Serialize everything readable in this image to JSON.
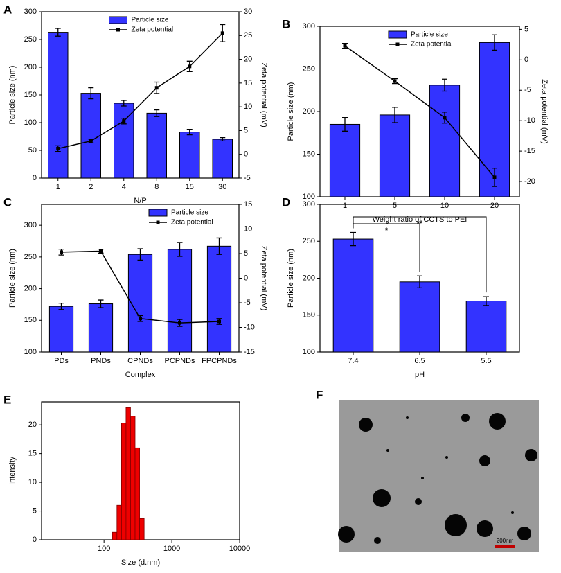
{
  "chart_data": [
    {
      "type": "bar",
      "panel_label": "A",
      "categories": [
        "1",
        "2",
        "4",
        "8",
        "15",
        "30"
      ],
      "xlabel": "N/P",
      "ylabel": "Particle size (nm)",
      "y2label": "Zeta potential (mV)",
      "ylim": [
        0,
        300
      ],
      "yticks": [
        0,
        50,
        100,
        150,
        200,
        250,
        300
      ],
      "y2lim": [
        -5,
        30
      ],
      "y2ticks": [
        -5,
        0,
        5,
        10,
        15,
        20,
        25,
        30
      ],
      "legend": "upper center",
      "series": [
        {
          "name": "Particle size",
          "kind": "bar",
          "color": "#3333ff",
          "values": [
            263,
            153,
            135,
            117,
            83,
            70
          ],
          "errors": [
            7,
            10,
            5,
            6,
            5,
            3
          ]
        },
        {
          "name": "Zeta potential",
          "kind": "line",
          "axis": "y2",
          "color": "#000000",
          "values": [
            1.2,
            2.8,
            7,
            14,
            18.5,
            25.5
          ],
          "errors": [
            0.6,
            0.4,
            0.6,
            1.2,
            1.1,
            1.8
          ]
        }
      ]
    },
    {
      "type": "bar",
      "panel_label": "B",
      "categories": [
        "1",
        "5",
        "10",
        "20"
      ],
      "xlabel": "Weight ratio of CCTS to PEI",
      "ylabel": "Particle size (nm)",
      "y2label": "Zeta potential (mV)",
      "ylim": [
        100,
        300
      ],
      "yticks": [
        100,
        150,
        200,
        250,
        300
      ],
      "y2lim": [
        -22.5,
        5.5
      ],
      "y2ticks": [
        -20,
        -15,
        -10,
        -5,
        0,
        5
      ],
      "legend": "upper center",
      "series": [
        {
          "name": "Particle size",
          "kind": "bar",
          "color": "#3333ff",
          "values": [
            185,
            196,
            231,
            281
          ],
          "errors": [
            8,
            9,
            7,
            9
          ]
        },
        {
          "name": "Zeta potential",
          "kind": "line",
          "axis": "y2",
          "color": "#000000",
          "values": [
            2.3,
            -3.5,
            -9.5,
            -19.3
          ],
          "errors": [
            0.4,
            0.4,
            0.9,
            1.5
          ]
        }
      ]
    },
    {
      "type": "bar",
      "panel_label": "C",
      "categories": [
        "PDs",
        "PNDs",
        "CPNDs",
        "PCPNDs",
        "FPCPNDs"
      ],
      "xlabel": "Complex",
      "ylabel": "Particle size (nm)",
      "y2label": "Zeta potential (mV)",
      "ylim": [
        100,
        333
      ],
      "yticks": [
        100,
        150,
        200,
        250,
        300
      ],
      "y2lim": [
        -15,
        15
      ],
      "y2ticks": [
        -15,
        -10,
        -5,
        0,
        5,
        10,
        15
      ],
      "legend": "upper right",
      "series": [
        {
          "name": "Particle size",
          "kind": "bar",
          "color": "#3333ff",
          "values": [
            172,
            176,
            254,
            262,
            267
          ],
          "errors": [
            5,
            6,
            9,
            11,
            13
          ]
        },
        {
          "name": "Zeta potential",
          "kind": "line",
          "axis": "y2",
          "color": "#000000",
          "values": [
            5.3,
            5.5,
            -8.2,
            -9.1,
            -8.8
          ],
          "errors": [
            0.6,
            0.4,
            0.6,
            0.7,
            0.6
          ]
        }
      ]
    },
    {
      "type": "bar",
      "panel_label": "D",
      "categories": [
        "7.4",
        "6.5",
        "5.5"
      ],
      "xlabel": "pH",
      "ylabel": "Particle size (nm)",
      "ylim": [
        100,
        300
      ],
      "yticks": [
        100,
        150,
        200,
        250,
        300
      ],
      "series": [
        {
          "name": "Particle size",
          "kind": "bar",
          "color": "#3333ff",
          "values": [
            253,
            195,
            169
          ],
          "errors": [
            9,
            8,
            6
          ]
        }
      ],
      "annotations": [
        {
          "text": "*"
        },
        {
          "text": "**"
        }
      ]
    },
    {
      "type": "histogram",
      "panel_label": "E",
      "xlabel": "Size (d.nm)",
      "ylabel": "Intensity",
      "xscale": "log",
      "xlim": [
        12,
        10000
      ],
      "xticks": [
        100,
        1000,
        10000
      ],
      "ylim": [
        0,
        24
      ],
      "yticks": [
        0,
        5,
        10,
        15,
        20
      ],
      "color": "#ee0000",
      "bins": [
        133,
        155,
        181,
        211,
        246,
        287,
        335,
        391
      ],
      "values": [
        1.3,
        6,
        20.3,
        23,
        21.5,
        16,
        3.7
      ]
    }
  ],
  "image_panel": {
    "label": "F",
    "scale_bar": "200nm"
  }
}
